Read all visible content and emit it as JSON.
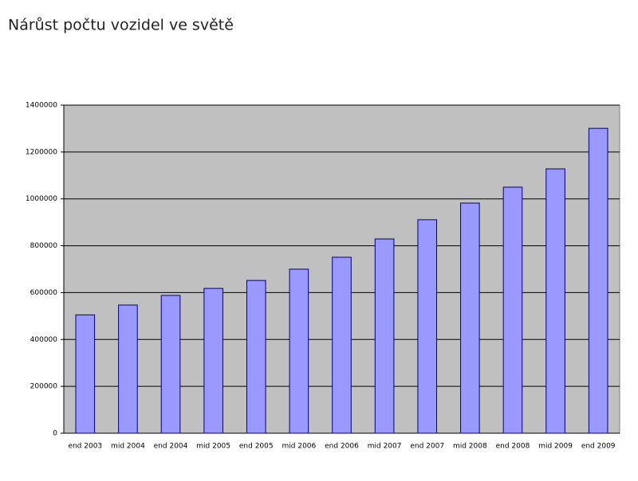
{
  "chart_data": {
    "type": "bar",
    "title": "Nárůst počtu vozidel ve světě",
    "categories": [
      "end 2003",
      "mid 2004",
      "end 2004",
      "mid 2005",
      "end 2005",
      "mid 2006",
      "end 2006",
      "mid 2007",
      "end 2007",
      "mid 2008",
      "end 2008",
      "mid 2009",
      "end 2009"
    ],
    "values": [
      505000,
      547000,
      588000,
      618000,
      652000,
      700000,
      751000,
      829000,
      911000,
      982000,
      1050000,
      1128000,
      1301000
    ],
    "color": "#9999ff",
    "ylim": [
      0,
      1400000
    ],
    "yticks": [
      0,
      200000,
      400000,
      600000,
      800000,
      1000000,
      1200000,
      1400000
    ],
    "grid": true
  }
}
